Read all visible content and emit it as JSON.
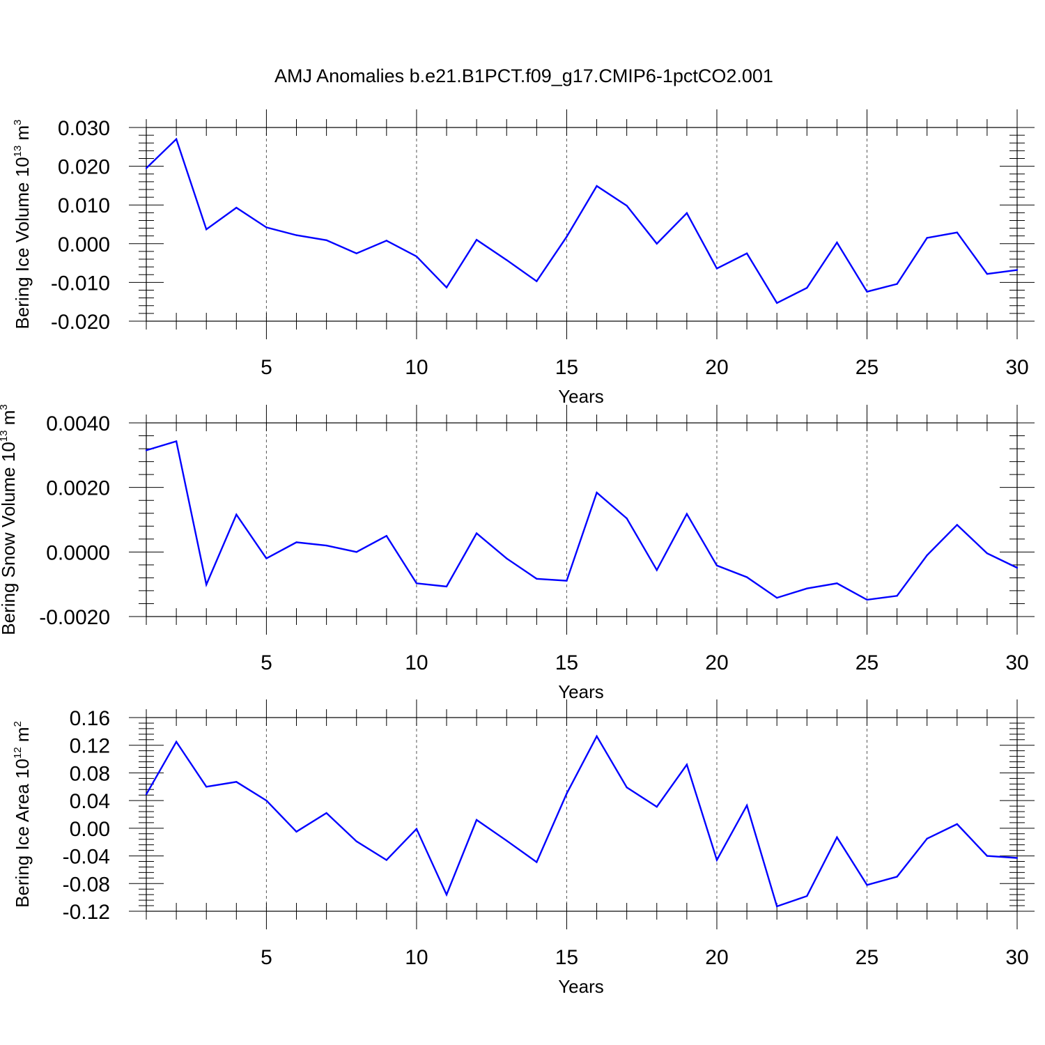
{
  "title": "AMJ Anomalies b.e21.B1PCT.f09_g17.CMIP6-1pctCO2.001",
  "chart_data": [
    {
      "type": "line",
      "ylabel": "Bering Ice Volume 10",
      "ylabel_exp": "13",
      "ylabel_unit": " m",
      "ylabel_unit_exp": "3",
      "xlabel": "Years",
      "xlim": [
        1,
        30
      ],
      "ylim": [
        -0.02,
        0.03
      ],
      "xticks": [
        5,
        10,
        15,
        20,
        25,
        30
      ],
      "xtick_labels": [
        "5",
        "10",
        "15",
        "20",
        "25",
        "30"
      ],
      "yticks": [
        -0.02,
        -0.01,
        0.0,
        0.01,
        0.02,
        0.03
      ],
      "ytick_labels": [
        "-0.020",
        "-0.010",
        "0.000",
        "0.010",
        "0.020",
        "0.030"
      ],
      "series_color": "#0000ff",
      "x": [
        1,
        2,
        3,
        4,
        5,
        6,
        7,
        8,
        9,
        10,
        11,
        12,
        13,
        14,
        15,
        16,
        17,
        18,
        19,
        20,
        21,
        22,
        23,
        24,
        25,
        26,
        27,
        28,
        29,
        30
      ],
      "values": [
        0.0195,
        0.027,
        0.0037,
        0.0093,
        0.0042,
        0.0022,
        0.0009,
        -0.0025,
        0.0008,
        -0.0033,
        -0.0113,
        0.001,
        -0.0042,
        -0.0097,
        0.0018,
        0.0149,
        0.0098,
        0.0,
        0.0079,
        -0.0064,
        -0.0025,
        -0.0153,
        -0.0114,
        0.0003,
        -0.0124,
        -0.0104,
        0.0015,
        0.0029,
        -0.0078,
        -0.0068
      ]
    },
    {
      "type": "line",
      "ylabel": "Bering Snow Volume 10",
      "ylabel_exp": "13",
      "ylabel_unit": " m",
      "ylabel_unit_exp": "3",
      "xlabel": "Years",
      "xlim": [
        1,
        30
      ],
      "ylim": [
        -0.002,
        0.004
      ],
      "xticks": [
        5,
        10,
        15,
        20,
        25,
        30
      ],
      "xtick_labels": [
        "5",
        "10",
        "15",
        "20",
        "25",
        "30"
      ],
      "yticks": [
        -0.002,
        0.0,
        0.002,
        0.004
      ],
      "ytick_labels": [
        "-0.0020",
        "0.0000",
        "0.0020",
        "0.0040"
      ],
      "series_color": "#0000ff",
      "x": [
        1,
        2,
        3,
        4,
        5,
        6,
        7,
        8,
        9,
        10,
        11,
        12,
        13,
        14,
        15,
        16,
        17,
        18,
        19,
        20,
        21,
        22,
        23,
        24,
        25,
        26,
        27,
        28,
        29,
        30
      ],
      "values": [
        0.00315,
        0.00343,
        -0.00101,
        0.00116,
        -0.0002,
        0.0003,
        0.0002,
        0.0,
        0.0005,
        -0.00097,
        -0.00107,
        0.00058,
        -0.0002,
        -0.00083,
        -0.00089,
        0.00184,
        0.00104,
        -0.00056,
        0.00118,
        -0.00042,
        -0.00078,
        -0.00142,
        -0.00113,
        -0.00097,
        -0.00148,
        -0.00136,
        -0.0001,
        0.00084,
        -4e-05,
        -0.00049
      ]
    },
    {
      "type": "line",
      "ylabel": "Bering Ice Area 10",
      "ylabel_exp": "12",
      "ylabel_unit": " m",
      "ylabel_unit_exp": "2",
      "xlabel": "Years",
      "xlim": [
        1,
        30
      ],
      "ylim": [
        -0.12,
        0.16
      ],
      "xticks": [
        5,
        10,
        15,
        20,
        25,
        30
      ],
      "xtick_labels": [
        "5",
        "10",
        "15",
        "20",
        "25",
        "30"
      ],
      "yticks": [
        -0.12,
        -0.08,
        -0.04,
        0.0,
        0.04,
        0.08,
        0.12,
        0.16
      ],
      "ytick_labels": [
        "-0.12",
        "-0.08",
        "-0.04",
        "0.00",
        "0.04",
        "0.08",
        "0.12",
        "0.16"
      ],
      "series_color": "#0000ff",
      "x": [
        1,
        2,
        3,
        4,
        5,
        6,
        7,
        8,
        9,
        10,
        11,
        12,
        13,
        14,
        15,
        16,
        17,
        18,
        19,
        20,
        21,
        22,
        23,
        24,
        25,
        26,
        27,
        28,
        29,
        30
      ],
      "values": [
        0.049,
        0.125,
        0.06,
        0.067,
        0.04,
        -0.005,
        0.022,
        -0.019,
        -0.046,
        -0.001,
        -0.096,
        0.012,
        -0.018,
        -0.049,
        0.05,
        0.133,
        0.059,
        0.031,
        0.092,
        -0.046,
        0.033,
        -0.113,
        -0.098,
        -0.013,
        -0.082,
        -0.07,
        -0.015,
        0.006,
        -0.04,
        -0.043
      ]
    }
  ]
}
